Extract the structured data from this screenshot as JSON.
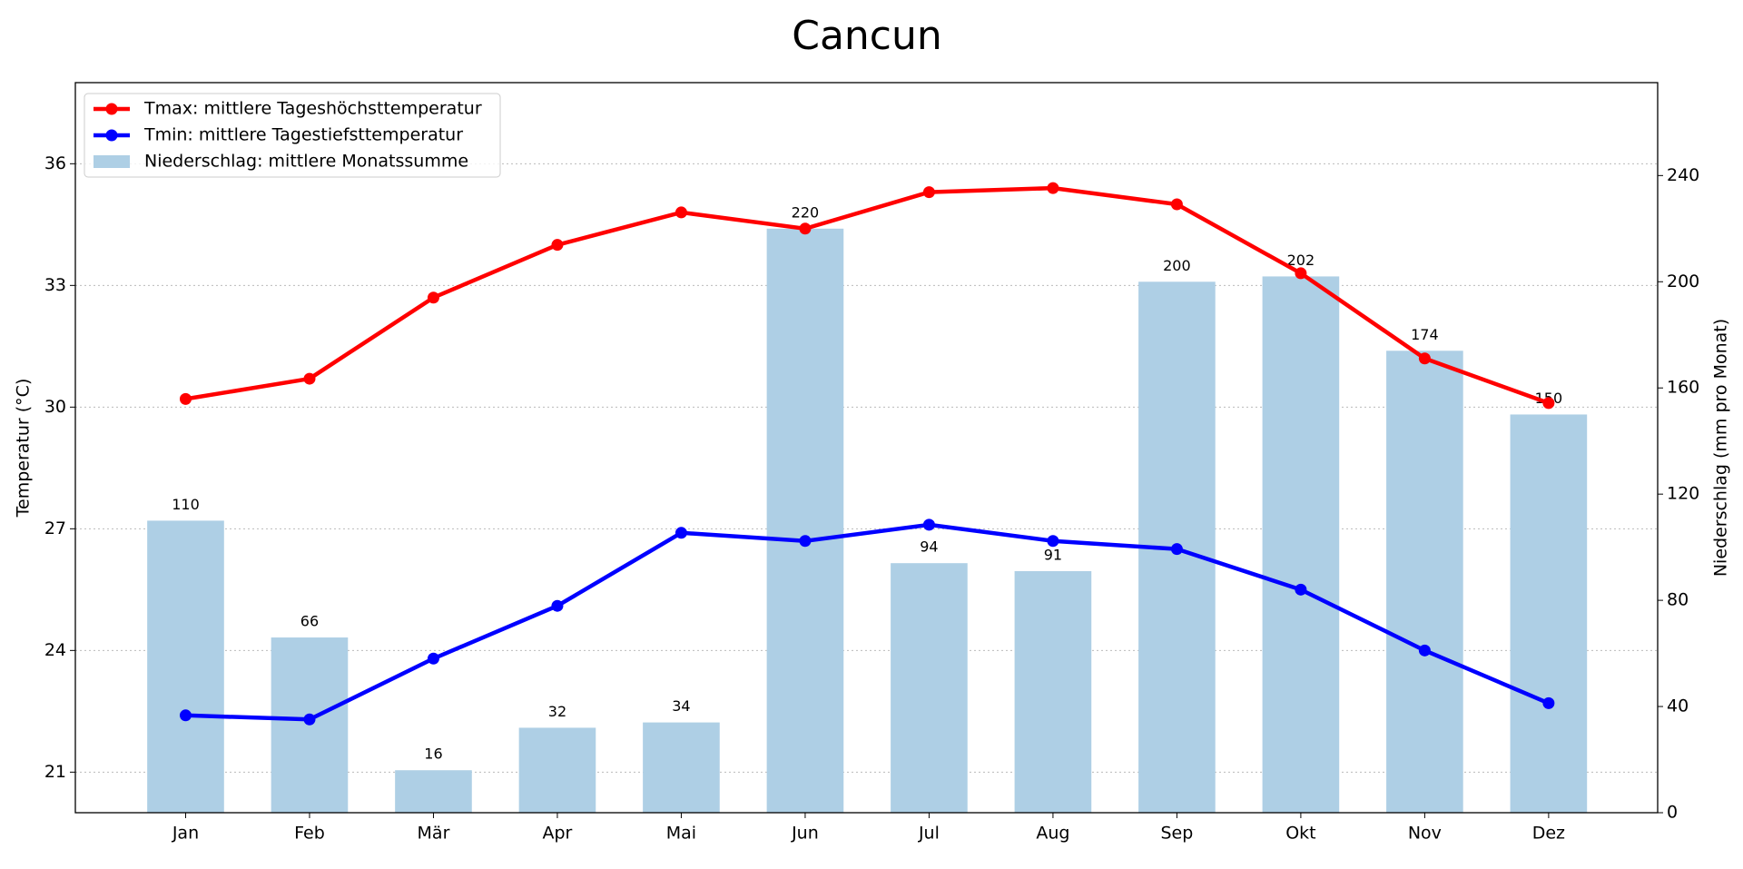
{
  "chart_data": {
    "type": "combo",
    "title": "Cancun",
    "categories": [
      "Jan",
      "Feb",
      "Mär",
      "Apr",
      "Mai",
      "Jun",
      "Jul",
      "Aug",
      "Sep",
      "Okt",
      "Nov",
      "Dez"
    ],
    "ylabel": "Temperatur (°C)",
    "y2label": "Niederschlag (mm pro Monat)",
    "ylim": [
      20,
      38
    ],
    "yticks": [
      21,
      24,
      27,
      30,
      33,
      36
    ],
    "y2lim": [
      0,
      275
    ],
    "y2ticks": [
      0,
      40,
      80,
      120,
      160,
      200,
      240
    ],
    "grid": true,
    "legend": "upper left",
    "series": [
      {
        "name": "Niederschlag: mittlere Monatssumme",
        "type": "bar",
        "axis": "y2",
        "color": "#aecfe5",
        "values": [
          110,
          66,
          16,
          32,
          34,
          220,
          94,
          91,
          200,
          202,
          174,
          150
        ]
      },
      {
        "name": "Tmax: mittlere Tageshöchsttemperatur",
        "type": "line",
        "color": "#ff0000",
        "values": [
          30.2,
          30.7,
          32.7,
          34.0,
          34.8,
          34.4,
          35.3,
          35.4,
          35.0,
          33.3,
          31.2,
          30.1
        ]
      },
      {
        "name": "Tmin: mittlere Tagestiefsttemperatur",
        "type": "line",
        "color": "#0000ff",
        "values": [
          22.4,
          22.3,
          23.8,
          25.1,
          26.9,
          26.7,
          27.1,
          26.7,
          26.5,
          25.5,
          24.0,
          22.7
        ]
      }
    ]
  }
}
